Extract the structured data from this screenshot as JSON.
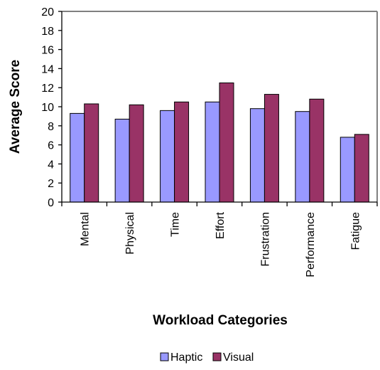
{
  "chart_data": {
    "type": "bar",
    "categories": [
      "Mental",
      "Physical",
      "Time",
      "Effort",
      "Frustration",
      "Performance",
      "Fatigue"
    ],
    "series": [
      {
        "name": "Haptic",
        "values": [
          9.3,
          8.7,
          9.6,
          10.5,
          9.8,
          9.5,
          6.8
        ],
        "color": "#9999ff"
      },
      {
        "name": "Visual",
        "values": [
          10.3,
          10.2,
          10.5,
          12.5,
          11.3,
          10.8,
          7.1
        ],
        "color": "#993366"
      }
    ],
    "xlabel": "Workload Categories",
    "ylabel": "Average Score",
    "ylim": [
      0,
      20
    ],
    "yticks": [
      0,
      2,
      4,
      6,
      8,
      10,
      12,
      14,
      16,
      18,
      20
    ],
    "grid": false,
    "legend_position": "bottom"
  }
}
